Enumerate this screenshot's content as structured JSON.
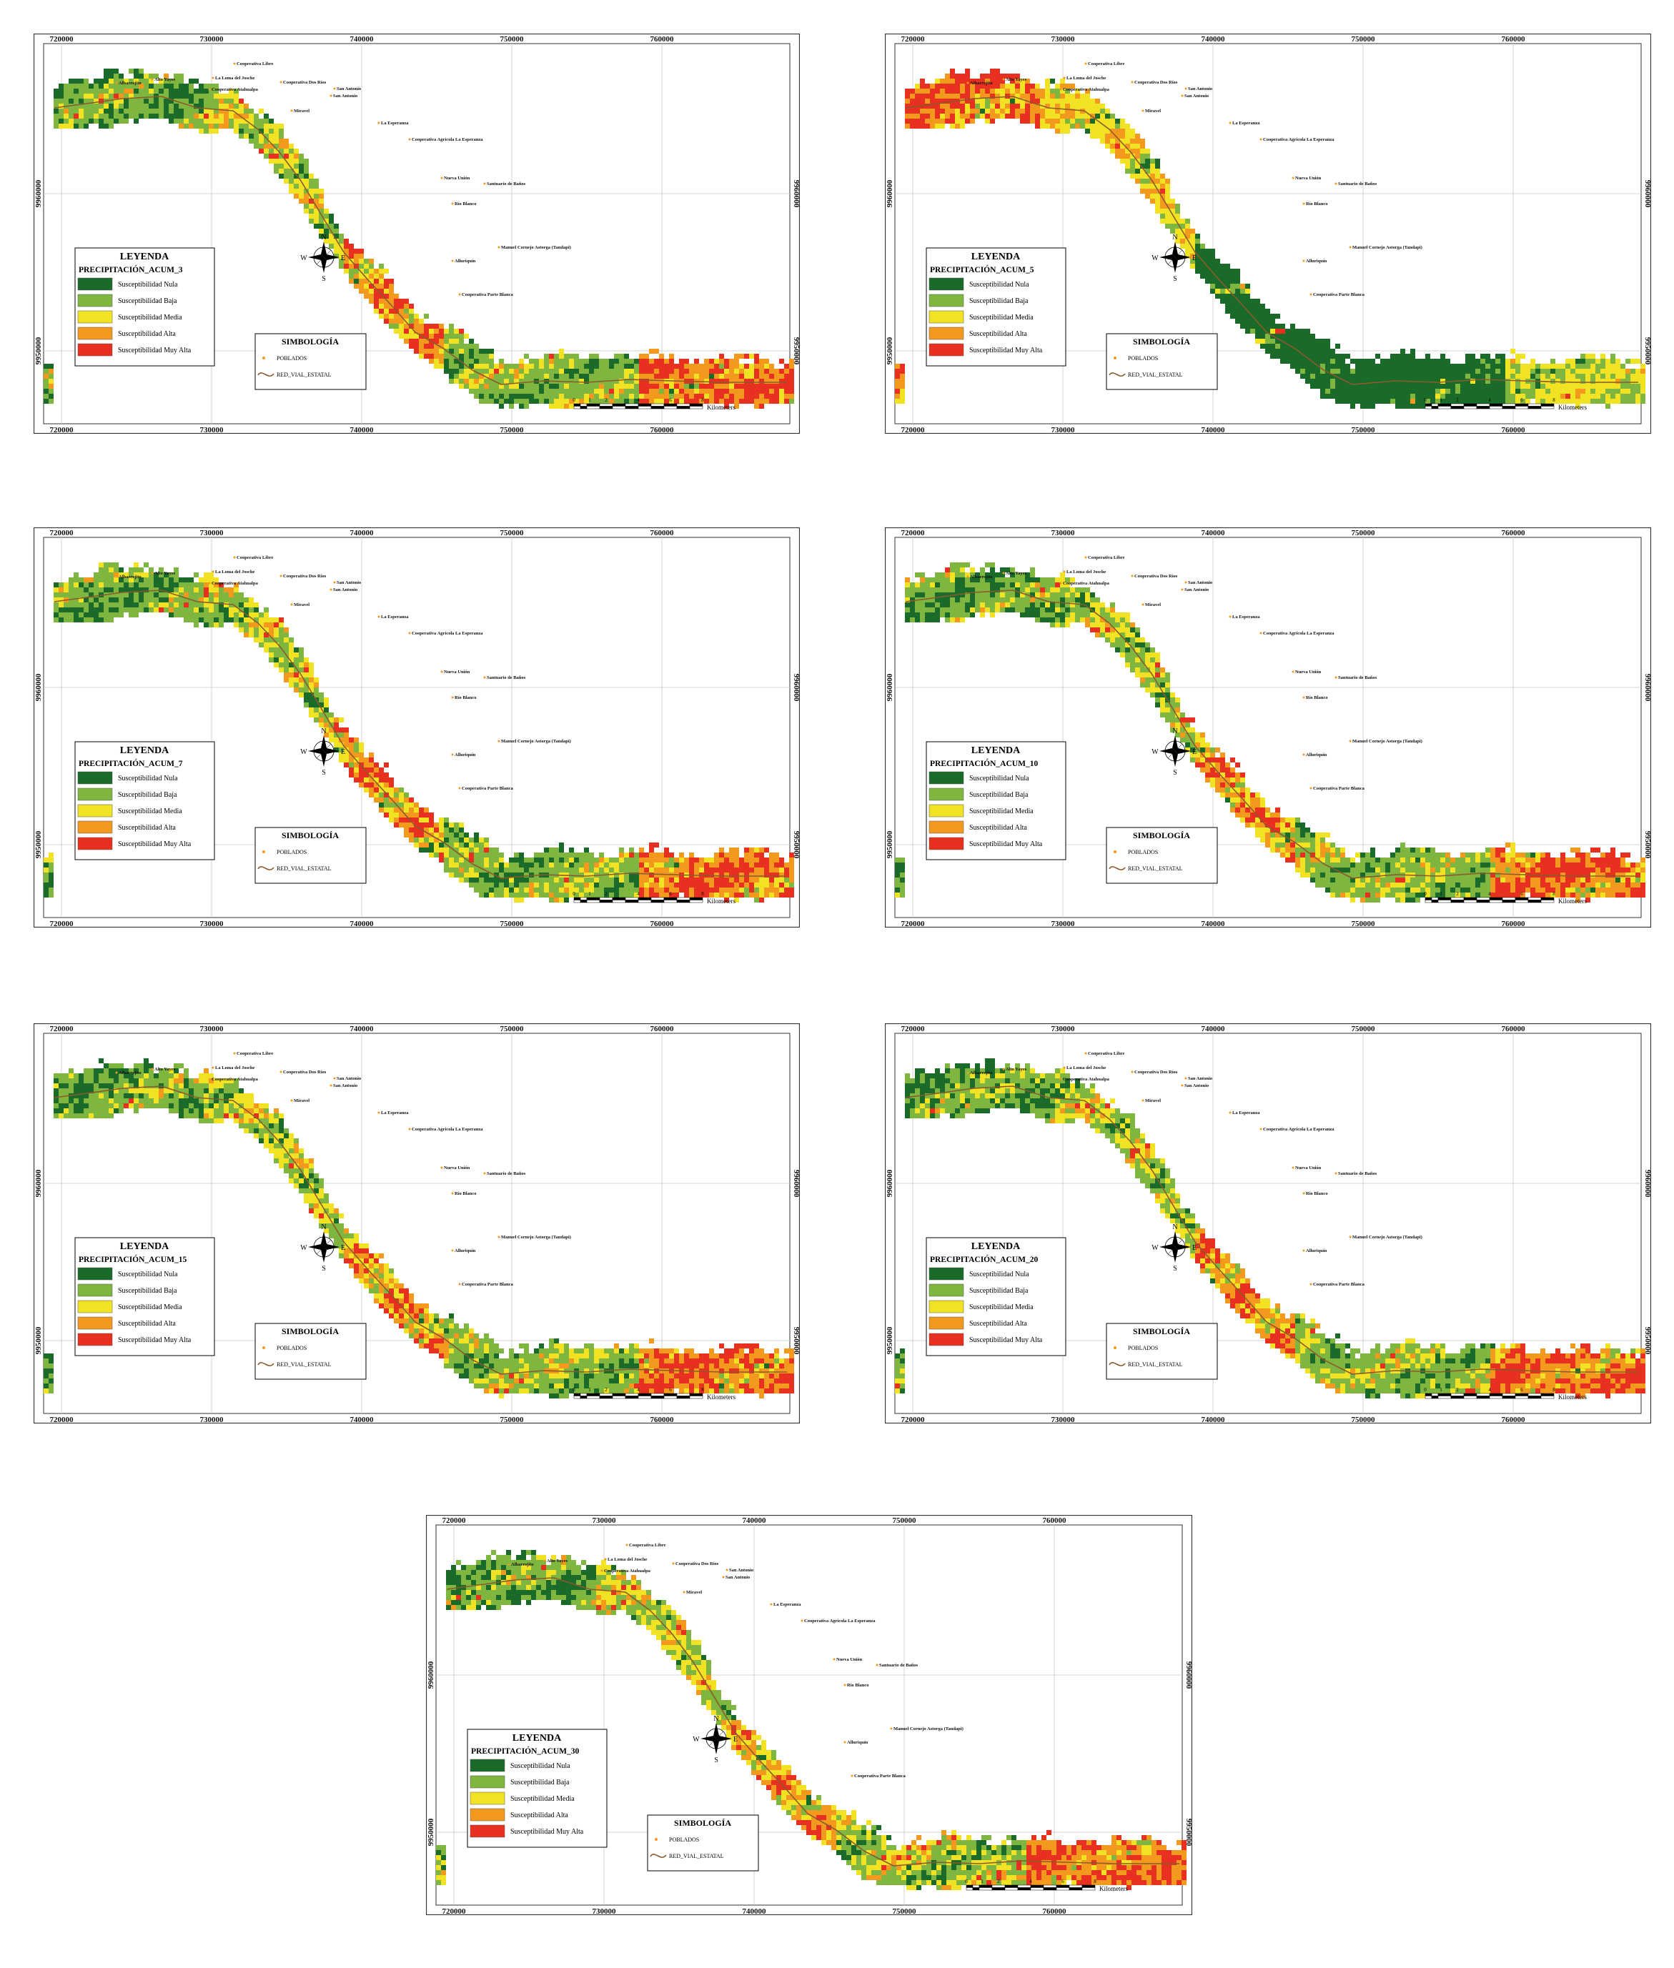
{
  "colors": {
    "nula": "#1a6b2a",
    "baja": "#7fb640",
    "media": "#f1e323",
    "alta": "#f39a1e",
    "muy_alta": "#e7301f",
    "road": "#8b5a2b",
    "poblado": "#f39a1e"
  },
  "grid": {
    "x_ticks": [
      "720000",
      "730000",
      "740000",
      "750000",
      "760000"
    ],
    "y_ticks": [
      "9960000",
      "9950000"
    ]
  },
  "legend": {
    "title": "LEYENDA",
    "items": [
      "Susceptibilidad Nula",
      "Susceptibilidad Baja",
      "Susceptibilidad Media",
      "Susceptibilidad Alta",
      "Susceptibilidad Muy Alta"
    ]
  },
  "simbologia": {
    "title": "SIMBOLOGÍA",
    "poblados": "POBLADOS",
    "red_vial": "RED_VIAL_ESTATAL"
  },
  "compass": {
    "n": "N",
    "s": "S",
    "e": "E",
    "w": "W"
  },
  "scale": {
    "labels": [
      "0",
      "1",
      "2",
      "4",
      "6",
      "8"
    ],
    "unit": "Kilometers"
  },
  "places": [
    "Cooperativa Libre",
    "Albarrojito",
    "Alto Yayes",
    "La Loma del Josche",
    "Cooperativa Dos Ríos",
    "Cooperativa Atahualpa",
    "San Antonio",
    "San Antonio",
    "Miravel",
    "La Esperanza",
    "Cooperativa Agrícola La Esperanza",
    "Nueva Unión",
    "Santuario de Baños",
    "Río Blanco",
    "Manuel Cornejo Astorga (Tandapi)",
    "Alluriquín",
    "Cooperativa Parte Blanca"
  ],
  "maps": [
    {
      "subtitle": "PRECIPITACIÓN_ACUM_3",
      "scenario": "a"
    },
    {
      "subtitle": "PRECIPITACIÓN_ACUM_5",
      "scenario": "b"
    },
    {
      "subtitle": "PRECIPITACIÓN_ACUM_7",
      "scenario": "a"
    },
    {
      "subtitle": "PRECIPITACIÓN_ACUM_10",
      "scenario": "a"
    },
    {
      "subtitle": "PRECIPITACIÓN_ACUM_15",
      "scenario": "a"
    },
    {
      "subtitle": "PRECIPITACIÓN_ACUM_20",
      "scenario": "a"
    },
    {
      "subtitle": "PRECIPITACIÓN_ACUM_30",
      "scenario": "c"
    }
  ]
}
